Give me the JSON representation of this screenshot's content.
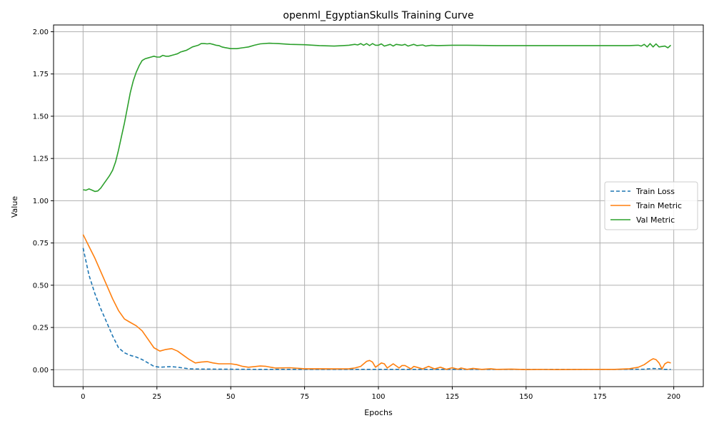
{
  "chart_data": {
    "type": "line",
    "title": "openml_EgyptianSkulls Training Curve",
    "xlabel": "Epochs",
    "ylabel": "Value",
    "xlim": [
      -10,
      210
    ],
    "ylim": [
      -0.1,
      2.04
    ],
    "xticks": [
      0,
      25,
      50,
      75,
      100,
      125,
      150,
      175,
      200
    ],
    "yticks": [
      0.0,
      0.25,
      0.5,
      0.75,
      1.0,
      1.25,
      1.5,
      1.75,
      2.0
    ],
    "ytick_labels": [
      "0.00",
      "0.25",
      "0.50",
      "0.75",
      "1.00",
      "1.25",
      "1.50",
      "1.75",
      "2.00"
    ],
    "grid": true,
    "legend_position": "center-right",
    "series": [
      {
        "name": "Train Loss",
        "color": "#1f77b4",
        "style": "dashed",
        "points": [
          [
            0,
            0.72
          ],
          [
            2,
            0.56
          ],
          [
            4,
            0.45
          ],
          [
            6,
            0.36
          ],
          [
            8,
            0.28
          ],
          [
            10,
            0.2
          ],
          [
            12,
            0.13
          ],
          [
            14,
            0.1
          ],
          [
            16,
            0.085
          ],
          [
            18,
            0.075
          ],
          [
            20,
            0.06
          ],
          [
            22,
            0.04
          ],
          [
            24,
            0.02
          ],
          [
            26,
            0.015
          ],
          [
            28,
            0.017
          ],
          [
            30,
            0.018
          ],
          [
            32,
            0.015
          ],
          [
            34,
            0.01
          ],
          [
            36,
            0.005
          ],
          [
            40,
            0.004
          ],
          [
            50,
            0.003
          ],
          [
            60,
            0.002
          ],
          [
            80,
            0.002
          ],
          [
            100,
            0.002
          ],
          [
            120,
            0.002
          ],
          [
            150,
            0.002
          ],
          [
            180,
            0.002
          ],
          [
            190,
            0.003
          ],
          [
            193,
            0.007
          ],
          [
            195,
            0.006
          ],
          [
            197,
            0.002
          ],
          [
            199,
            0.002
          ]
        ]
      },
      {
        "name": "Train Metric",
        "color": "#ff7f0e",
        "style": "solid",
        "points": [
          [
            0,
            0.8
          ],
          [
            2,
            0.73
          ],
          [
            4,
            0.66
          ],
          [
            6,
            0.58
          ],
          [
            8,
            0.5
          ],
          [
            10,
            0.42
          ],
          [
            12,
            0.35
          ],
          [
            14,
            0.3
          ],
          [
            16,
            0.28
          ],
          [
            18,
            0.26
          ],
          [
            20,
            0.23
          ],
          [
            22,
            0.18
          ],
          [
            24,
            0.13
          ],
          [
            26,
            0.11
          ],
          [
            28,
            0.12
          ],
          [
            30,
            0.125
          ],
          [
            32,
            0.11
          ],
          [
            34,
            0.085
          ],
          [
            36,
            0.06
          ],
          [
            38,
            0.04
          ],
          [
            40,
            0.045
          ],
          [
            42,
            0.048
          ],
          [
            44,
            0.04
          ],
          [
            46,
            0.035
          ],
          [
            50,
            0.035
          ],
          [
            52,
            0.03
          ],
          [
            54,
            0.02
          ],
          [
            56,
            0.015
          ],
          [
            60,
            0.022
          ],
          [
            62,
            0.02
          ],
          [
            65,
            0.01
          ],
          [
            70,
            0.012
          ],
          [
            75,
            0.006
          ],
          [
            80,
            0.006
          ],
          [
            85,
            0.005
          ],
          [
            90,
            0.006
          ],
          [
            92,
            0.01
          ],
          [
            94,
            0.02
          ],
          [
            96,
            0.05
          ],
          [
            97,
            0.055
          ],
          [
            98,
            0.045
          ],
          [
            99,
            0.015
          ],
          [
            101,
            0.04
          ],
          [
            102,
            0.035
          ],
          [
            103,
            0.01
          ],
          [
            105,
            0.035
          ],
          [
            107,
            0.01
          ],
          [
            108,
            0.025
          ],
          [
            109,
            0.025
          ],
          [
            111,
            0.005
          ],
          [
            112,
            0.02
          ],
          [
            113,
            0.015
          ],
          [
            115,
            0.005
          ],
          [
            117,
            0.02
          ],
          [
            119,
            0.005
          ],
          [
            121,
            0.015
          ],
          [
            123,
            0.002
          ],
          [
            125,
            0.012
          ],
          [
            127,
            0.003
          ],
          [
            128,
            0.01
          ],
          [
            130,
            0.002
          ],
          [
            132,
            0.008
          ],
          [
            135,
            0.002
          ],
          [
            138,
            0.006
          ],
          [
            140,
            0.002
          ],
          [
            145,
            0.004
          ],
          [
            150,
            0.001
          ],
          [
            155,
            0.002
          ],
          [
            160,
            0.001
          ],
          [
            170,
            0.002
          ],
          [
            180,
            0.002
          ],
          [
            185,
            0.006
          ],
          [
            188,
            0.015
          ],
          [
            190,
            0.03
          ],
          [
            192,
            0.055
          ],
          [
            193,
            0.065
          ],
          [
            194,
            0.06
          ],
          [
            195,
            0.04
          ],
          [
            196,
            0.005
          ],
          [
            197,
            0.035
          ],
          [
            198,
            0.045
          ],
          [
            199,
            0.04
          ]
        ]
      },
      {
        "name": "Val Metric",
        "color": "#2ca02c",
        "style": "solid",
        "points": [
          [
            0,
            1.065
          ],
          [
            1,
            1.062
          ],
          [
            2,
            1.07
          ],
          [
            3,
            1.063
          ],
          [
            4,
            1.055
          ],
          [
            5,
            1.058
          ],
          [
            6,
            1.075
          ],
          [
            7,
            1.1
          ],
          [
            8,
            1.125
          ],
          [
            9,
            1.15
          ],
          [
            10,
            1.18
          ],
          [
            11,
            1.23
          ],
          [
            12,
            1.3
          ],
          [
            13,
            1.38
          ],
          [
            14,
            1.46
          ],
          [
            15,
            1.55
          ],
          [
            16,
            1.64
          ],
          [
            17,
            1.71
          ],
          [
            18,
            1.76
          ],
          [
            19,
            1.8
          ],
          [
            20,
            1.83
          ],
          [
            21,
            1.84
          ],
          [
            22,
            1.845
          ],
          [
            23,
            1.85
          ],
          [
            24,
            1.855
          ],
          [
            25,
            1.85
          ],
          [
            26,
            1.85
          ],
          [
            27,
            1.86
          ],
          [
            28,
            1.855
          ],
          [
            29,
            1.855
          ],
          [
            30,
            1.86
          ],
          [
            31,
            1.865
          ],
          [
            32,
            1.87
          ],
          [
            33,
            1.88
          ],
          [
            34,
            1.885
          ],
          [
            35,
            1.89
          ],
          [
            36,
            1.9
          ],
          [
            37,
            1.91
          ],
          [
            38,
            1.915
          ],
          [
            39,
            1.92
          ],
          [
            40,
            1.93
          ],
          [
            41,
            1.93
          ],
          [
            42,
            1.928
          ],
          [
            43,
            1.93
          ],
          [
            44,
            1.925
          ],
          [
            45,
            1.92
          ],
          [
            46,
            1.918
          ],
          [
            47,
            1.91
          ],
          [
            48,
            1.906
          ],
          [
            50,
            1.9
          ],
          [
            52,
            1.9
          ],
          [
            54,
            1.905
          ],
          [
            56,
            1.91
          ],
          [
            58,
            1.92
          ],
          [
            60,
            1.928
          ],
          [
            63,
            1.932
          ],
          [
            66,
            1.93
          ],
          [
            70,
            1.925
          ],
          [
            75,
            1.923
          ],
          [
            80,
            1.918
          ],
          [
            85,
            1.915
          ],
          [
            88,
            1.918
          ],
          [
            90,
            1.92
          ],
          [
            92,
            1.925
          ],
          [
            93,
            1.922
          ],
          [
            94,
            1.93
          ],
          [
            95,
            1.92
          ],
          [
            96,
            1.93
          ],
          [
            97,
            1.918
          ],
          [
            98,
            1.93
          ],
          [
            99,
            1.92
          ],
          [
            100,
            1.92
          ],
          [
            101,
            1.928
          ],
          [
            102,
            1.915
          ],
          [
            104,
            1.925
          ],
          [
            105,
            1.915
          ],
          [
            106,
            1.925
          ],
          [
            108,
            1.92
          ],
          [
            109,
            1.925
          ],
          [
            110,
            1.915
          ],
          [
            111,
            1.92
          ],
          [
            112,
            1.925
          ],
          [
            113,
            1.918
          ],
          [
            115,
            1.922
          ],
          [
            116,
            1.915
          ],
          [
            118,
            1.92
          ],
          [
            120,
            1.918
          ],
          [
            125,
            1.92
          ],
          [
            130,
            1.92
          ],
          [
            140,
            1.918
          ],
          [
            150,
            1.918
          ],
          [
            160,
            1.918
          ],
          [
            175,
            1.918
          ],
          [
            185,
            1.918
          ],
          [
            188,
            1.92
          ],
          [
            189,
            1.915
          ],
          [
            190,
            1.925
          ],
          [
            191,
            1.91
          ],
          [
            192,
            1.93
          ],
          [
            193,
            1.91
          ],
          [
            194,
            1.928
          ],
          [
            195,
            1.91
          ],
          [
            197,
            1.915
          ],
          [
            198,
            1.905
          ],
          [
            199,
            1.92
          ]
        ]
      }
    ]
  }
}
